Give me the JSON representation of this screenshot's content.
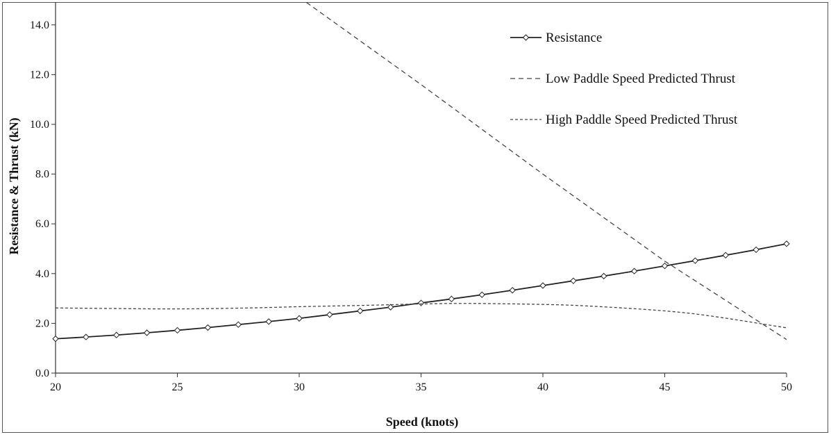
{
  "chart_data": {
    "type": "line",
    "title": "",
    "xlabel": "Speed (knots)",
    "ylabel": "Resistance & Thrust (kN)",
    "xlim": [
      20,
      50
    ],
    "ylim": [
      0,
      15
    ],
    "x_ticks": [
      20,
      25,
      30,
      35,
      40,
      45,
      50
    ],
    "x_tick_labels": [
      "20",
      "25",
      "30",
      "35",
      "40",
      "45",
      "50"
    ],
    "y_ticks": [
      0,
      2,
      4,
      6,
      8,
      10,
      12,
      14
    ],
    "y_tick_labels": [
      "0.0",
      "2.0",
      "4.0",
      "6.0",
      "8.0",
      "10.0",
      "12.0",
      "14.0"
    ],
    "grid": false,
    "legend_position": "top-right",
    "series": [
      {
        "name": "Resistance",
        "style": "solid-diamond",
        "x": [
          20,
          21.25,
          22.5,
          23.75,
          25,
          26.25,
          27.5,
          28.75,
          30,
          31.25,
          32.5,
          33.75,
          35,
          36.25,
          37.5,
          38.75,
          40,
          41.25,
          42.5,
          43.75,
          45,
          46.25,
          47.5,
          48.75,
          50
        ],
        "y": [
          1.38,
          1.45,
          1.53,
          1.62,
          1.72,
          1.83,
          1.95,
          2.07,
          2.2,
          2.35,
          2.5,
          2.65,
          2.82,
          2.98,
          3.15,
          3.33,
          3.52,
          3.71,
          3.9,
          4.1,
          4.31,
          4.52,
          4.74,
          4.96,
          5.2
        ]
      },
      {
        "name": "Low Paddle Speed Predicted Thrust",
        "style": "long-dash",
        "x": [
          30.3,
          35,
          40,
          45,
          50
        ],
        "y": [
          14.9,
          11.6,
          8.0,
          4.5,
          1.35
        ]
      },
      {
        "name": "High Paddle Speed Predicted Thrust",
        "style": "short-dash",
        "x": [
          20,
          22,
          25,
          28,
          30,
          33,
          35,
          37,
          40,
          42,
          45,
          47,
          50
        ],
        "y": [
          2.62,
          2.6,
          2.58,
          2.62,
          2.67,
          2.73,
          2.78,
          2.8,
          2.76,
          2.69,
          2.5,
          2.28,
          1.82
        ]
      }
    ]
  }
}
